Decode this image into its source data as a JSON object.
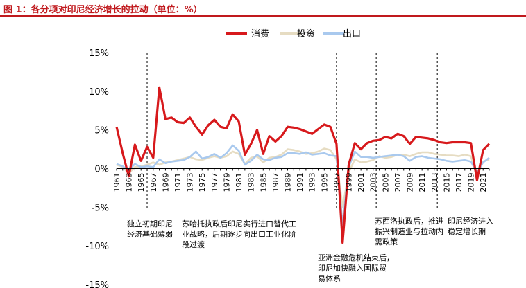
{
  "header": {
    "title": "图 1：各分项对印尼经济增长的拉动（单位：%）"
  },
  "colors": {
    "title": "#c0191d",
    "consumption": "#d7191c",
    "investment": "#e6dcc2",
    "exports": "#a9c9ee"
  },
  "chart_data": {
    "type": "line",
    "title": "图 1：各分项对印尼经济增长的拉动（单位：%）",
    "xlabel": "",
    "ylabel": "",
    "ylim": [
      -15,
      15
    ],
    "yticks": [
      "15%",
      "10%",
      "5%",
      "0%",
      "-5%",
      "-10%",
      "-15%"
    ],
    "legend_position": "top-center",
    "grid": false,
    "x_tick_labels": [
      "1961",
      "1963",
      "1965",
      "1967",
      "1969",
      "1971",
      "1973",
      "1975",
      "1977",
      "1979",
      "1981",
      "1983",
      "1985",
      "1987",
      "1989",
      "1991",
      "1993",
      "1995",
      "1997",
      "1999",
      "2001",
      "2003",
      "2005",
      "2007",
      "2009",
      "2011",
      "2013",
      "2015",
      "2017",
      "2019",
      "2021"
    ],
    "x": [
      1961,
      1962,
      1963,
      1964,
      1965,
      1966,
      1967,
      1968,
      1969,
      1970,
      1971,
      1972,
      1973,
      1974,
      1975,
      1976,
      1977,
      1978,
      1979,
      1980,
      1981,
      1982,
      1983,
      1984,
      1985,
      1986,
      1987,
      1988,
      1989,
      1990,
      1991,
      1992,
      1993,
      1994,
      1995,
      1996,
      1997,
      1998,
      1999,
      2000,
      2001,
      2002,
      2003,
      2004,
      2005,
      2006,
      2007,
      2008,
      2009,
      2010,
      2011,
      2012,
      2013,
      2014,
      2015,
      2016,
      2017,
      2018,
      2019,
      2020,
      2021,
      2022
    ],
    "series": [
      {
        "name": "消费",
        "color": "#d7191c",
        "values": [
          5.4,
          2.0,
          -1.0,
          3.1,
          1.0,
          2.8,
          1.4,
          10.5,
          6.4,
          6.6,
          6.0,
          5.9,
          6.6,
          5.4,
          4.4,
          5.6,
          6.3,
          5.4,
          5.2,
          7.0,
          6.1,
          1.8,
          3.2,
          5.0,
          1.9,
          4.2,
          3.5,
          4.2,
          5.4,
          5.3,
          5.1,
          4.8,
          4.5,
          5.1,
          5.7,
          5.4,
          3.2,
          -9.6,
          0.5,
          3.3,
          2.5,
          3.3,
          3.6,
          3.7,
          4.1,
          3.9,
          4.5,
          4.2,
          3.2,
          4.1,
          4.0,
          3.9,
          3.7,
          3.4,
          3.3,
          3.4,
          3.4,
          3.4,
          3.3,
          -1.5,
          2.4,
          3.2
        ]
      },
      {
        "name": "投资",
        "color": "#e6dcc2",
        "values": [
          0.5,
          0.2,
          -0.6,
          0.2,
          0.3,
          0.5,
          0.8,
          0.5,
          0.8,
          0.9,
          1.1,
          1.3,
          1.5,
          1.2,
          1.1,
          1.4,
          1.6,
          1.4,
          1.6,
          2.2,
          1.9,
          0.6,
          1.4,
          1.6,
          0.8,
          1.4,
          1.5,
          1.8,
          2.5,
          2.4,
          2.2,
          1.9,
          2.0,
          2.2,
          2.6,
          2.4,
          1.2,
          -5.0,
          -0.5,
          1.2,
          0.8,
          0.9,
          1.1,
          1.6,
          1.4,
          1.5,
          1.8,
          1.8,
          1.6,
          1.9,
          2.1,
          2.1,
          1.9,
          1.8,
          1.7,
          1.7,
          1.6,
          1.8,
          1.6,
          -1.0,
          0.9,
          1.2
        ]
      },
      {
        "name": "出口",
        "color": "#a9c9ee",
        "values": [
          0.6,
          0.3,
          -0.2,
          0.6,
          0.2,
          0.3,
          0.2,
          1.2,
          0.7,
          0.9,
          1.0,
          1.1,
          1.5,
          2.2,
          1.3,
          1.5,
          1.9,
          1.4,
          2.0,
          3.0,
          2.3,
          0.5,
          1.0,
          1.8,
          1.2,
          1.1,
          1.4,
          1.5,
          2.0,
          2.0,
          1.9,
          2.1,
          1.8,
          1.9,
          2.0,
          1.7,
          1.6,
          -7.3,
          0.2,
          2.2,
          1.5,
          1.5,
          1.4,
          1.5,
          1.6,
          1.7,
          1.8,
          1.6,
          1.0,
          1.5,
          1.6,
          1.4,
          1.3,
          1.2,
          1.0,
          0.9,
          1.0,
          1.1,
          0.9,
          -0.5,
          0.8,
          1.4
        ]
      }
    ],
    "vlines": [
      1966,
      1997,
      2003.5,
      2013.5
    ],
    "annotations": [
      {
        "id": "ann1",
        "lines": [
          "独立初期印尼",
          "经济基础薄弱"
        ]
      },
      {
        "id": "ann2",
        "lines": [
          "苏哈托执政后印尼实行进口替代工",
          "业战略，后期逐步向出口工业化阶",
          "段过渡"
        ]
      },
      {
        "id": "ann3",
        "lines": [
          "亚洲金融危机结束后，",
          "印尼加快融入国际贸",
          "易体系"
        ]
      },
      {
        "id": "ann4",
        "lines": [
          "苏西洛执政后，推进",
          "振兴制造业与拉动内",
          "需政策"
        ]
      },
      {
        "id": "ann5",
        "lines": [
          "印尼经济进入",
          "稳定增长期"
        ]
      }
    ]
  }
}
